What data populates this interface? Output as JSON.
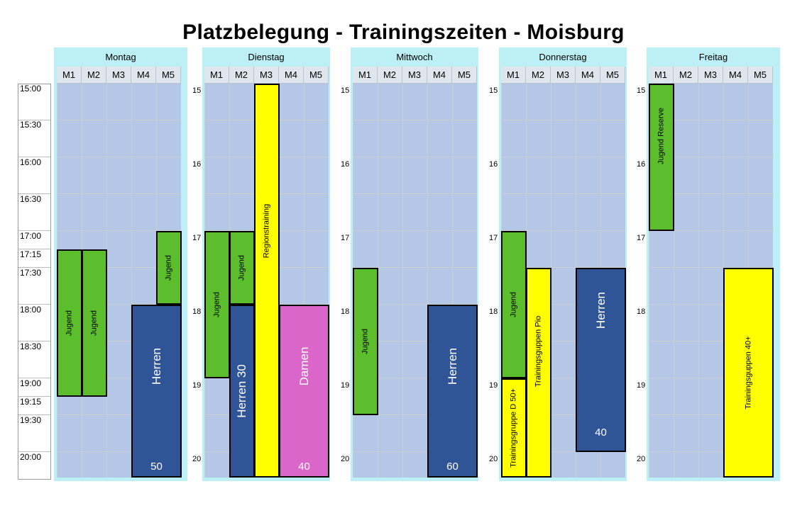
{
  "title": "Platzbelegung - Trainingszeiten - Moisburg",
  "time_labels": [
    "15:00",
    "15:30",
    "16:00",
    "16:30",
    "17:00",
    "17:15",
    "17:30",
    "18:00",
    "18:30",
    "19:00",
    "19:15",
    "19:30",
    "20:00"
  ],
  "fields": [
    "M1",
    "M2",
    "M3",
    "M4",
    "M5"
  ],
  "days": [
    {
      "name": "Montag",
      "hour_labels": [],
      "blocks": [
        {
          "label": "Jugend",
          "num": ""
        },
        {
          "label": "Jugend",
          "num": ""
        },
        {
          "label": "Jugend",
          "num": ""
        },
        {
          "label": "Herren",
          "num": "50"
        }
      ]
    },
    {
      "name": "Dienstag",
      "hour_labels": [
        "15",
        "16",
        "17",
        "18",
        "19",
        "20"
      ],
      "blocks": [
        {
          "label": "Jugend",
          "num": ""
        },
        {
          "label": "Jugend",
          "num": ""
        },
        {
          "label": "Herren 30",
          "num": ""
        },
        {
          "label": "Regionstraining",
          "num": ""
        },
        {
          "label": "Damen",
          "num": "40"
        }
      ]
    },
    {
      "name": "Mittwoch",
      "hour_labels": [
        "15",
        "16",
        "17",
        "18",
        "19",
        "20"
      ],
      "blocks": [
        {
          "label": "Jugend",
          "num": ""
        },
        {
          "label": "Herren",
          "num": "60"
        }
      ]
    },
    {
      "name": "Donnerstag",
      "hour_labels": [
        "15",
        "16",
        "17",
        "18",
        "19",
        "20"
      ],
      "blocks": [
        {
          "label": "Jugend",
          "num": ""
        },
        {
          "label": "Trainingsgruppe D 50+",
          "num": ""
        },
        {
          "label": "Trainingsguppen Pio",
          "num": ""
        },
        {
          "label": "Herren",
          "num": "40"
        }
      ]
    },
    {
      "name": "Freitag",
      "hour_labels": [
        "15",
        "16",
        "17",
        "18",
        "19",
        "20"
      ],
      "blocks": [
        {
          "label": "Jugend Reserve",
          "num": ""
        },
        {
          "label": "Trainingsguppen 40+",
          "num": ""
        }
      ]
    }
  ]
}
